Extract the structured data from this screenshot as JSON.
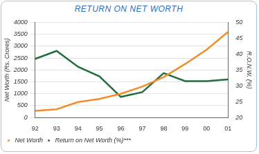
{
  "chart_data": {
    "type": "line",
    "title": "RETURN ON NET WORTH",
    "categories": [
      "92",
      "93",
      "94",
      "95",
      "96",
      "97",
      "98",
      "99",
      "00",
      "01"
    ],
    "series": [
      {
        "name": "Net Worth",
        "color": "#f28c28",
        "axis": "y",
        "values": [
          280,
          350,
          650,
          780,
          1000,
          1300,
          1700,
          2250,
          2850,
          3600
        ]
      },
      {
        "name": "Return on Net Worth (%)***",
        "color": "#1f6e3c",
        "axis": "y2",
        "values": [
          38.5,
          41,
          36,
          33,
          26.5,
          28,
          34,
          31.5,
          31.5,
          32
        ]
      }
    ],
    "y_label": "Net Worth (Rs. Crores)",
    "y2_label": "R.O.N.W. (%)",
    "ylim": [
      0,
      4000
    ],
    "yticks": [
      0,
      500,
      1000,
      1500,
      2000,
      2500,
      3000,
      3500,
      4000
    ],
    "y2lim": [
      20,
      50
    ],
    "y2ticks": [
      20,
      25,
      30,
      35,
      40,
      45,
      50
    ],
    "grid": true,
    "legend": "bottom-left"
  }
}
